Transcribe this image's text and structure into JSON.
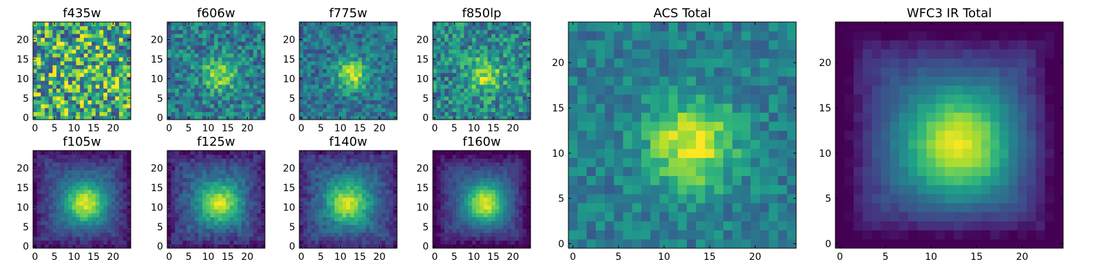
{
  "figure": {
    "colormap": "viridis",
    "frame_color": "#000000",
    "background": "#ffffff"
  },
  "chart_data": [
    {
      "type": "heatmap",
      "title": "f435w",
      "grid": false,
      "xlim": [
        -0.5,
        24.5
      ],
      "ylim": [
        -0.5,
        24.5
      ],
      "xticks": [
        0,
        5,
        10,
        15,
        20
      ],
      "yticks": [
        0,
        5,
        10,
        15,
        20
      ],
      "image_shape": [
        25,
        25
      ],
      "center": [
        13,
        11
      ],
      "source_strength": 0.05,
      "spread": 4.5,
      "noise": 0.42,
      "baseline": 0.62,
      "vignette": 0.0,
      "seed": 11
    },
    {
      "type": "heatmap",
      "title": "f606w",
      "grid": false,
      "xlim": [
        -0.5,
        24.5
      ],
      "ylim": [
        -0.5,
        24.5
      ],
      "xticks": [
        0,
        5,
        10,
        15,
        20
      ],
      "yticks": [
        0,
        5,
        10,
        15,
        20
      ],
      "image_shape": [
        25,
        25
      ],
      "center": [
        13,
        11
      ],
      "source_strength": 0.45,
      "spread": 2.8,
      "noise": 0.22,
      "baseline": 0.42,
      "vignette": 0.0,
      "seed": 23
    },
    {
      "type": "heatmap",
      "title": "f775w",
      "grid": false,
      "xlim": [
        -0.5,
        24.5
      ],
      "ylim": [
        -0.5,
        24.5
      ],
      "xticks": [
        0,
        5,
        10,
        15,
        20
      ],
      "yticks": [
        0,
        5,
        10,
        15,
        20
      ],
      "image_shape": [
        25,
        25
      ],
      "center": [
        13,
        11
      ],
      "source_strength": 0.55,
      "spread": 2.7,
      "noise": 0.18,
      "baseline": 0.38,
      "vignette": 0.0,
      "seed": 37
    },
    {
      "type": "heatmap",
      "title": "f850lp",
      "grid": false,
      "xlim": [
        -0.5,
        24.5
      ],
      "ylim": [
        -0.5,
        24.5
      ],
      "xticks": [
        0,
        5,
        10,
        15,
        20
      ],
      "yticks": [
        0,
        5,
        10,
        15,
        20
      ],
      "image_shape": [
        25,
        25
      ],
      "center": [
        13,
        11
      ],
      "source_strength": 0.42,
      "spread": 3.0,
      "noise": 0.24,
      "baseline": 0.46,
      "vignette": 0.0,
      "seed": 41
    },
    {
      "type": "heatmap",
      "title": "f105w",
      "grid": false,
      "xlim": [
        -0.5,
        24.5
      ],
      "ylim": [
        -0.5,
        24.5
      ],
      "xticks": [
        0,
        5,
        10,
        15,
        20
      ],
      "yticks": [
        0,
        5,
        10,
        15,
        20
      ],
      "image_shape": [
        25,
        25
      ],
      "center": [
        13,
        11
      ],
      "source_strength": 0.65,
      "spread": 3.6,
      "noise": 0.07,
      "baseline": 0.3,
      "vignette": 0.25,
      "seed": 53
    },
    {
      "type": "heatmap",
      "title": "f125w",
      "grid": false,
      "xlim": [
        -0.5,
        24.5
      ],
      "ylim": [
        -0.5,
        24.5
      ],
      "xticks": [
        0,
        5,
        10,
        15,
        20
      ],
      "yticks": [
        0,
        5,
        10,
        15,
        20
      ],
      "image_shape": [
        25,
        25
      ],
      "center": [
        13,
        11
      ],
      "source_strength": 0.6,
      "spread": 3.7,
      "noise": 0.09,
      "baseline": 0.32,
      "vignette": 0.25,
      "seed": 67
    },
    {
      "type": "heatmap",
      "title": "f140w",
      "grid": false,
      "xlim": [
        -0.5,
        24.5
      ],
      "ylim": [
        -0.5,
        24.5
      ],
      "xticks": [
        0,
        5,
        10,
        15,
        20
      ],
      "yticks": [
        0,
        5,
        10,
        15,
        20
      ],
      "image_shape": [
        25,
        25
      ],
      "center": [
        12,
        11
      ],
      "source_strength": 0.58,
      "spread": 3.8,
      "noise": 0.09,
      "baseline": 0.33,
      "vignette": 0.22,
      "seed": 71
    },
    {
      "type": "heatmap",
      "title": "f160w",
      "grid": false,
      "xlim": [
        -0.5,
        24.5
      ],
      "ylim": [
        -0.5,
        24.5
      ],
      "xticks": [
        0,
        5,
        10,
        15,
        20
      ],
      "yticks": [
        0,
        5,
        10,
        15,
        20
      ],
      "image_shape": [
        25,
        25
      ],
      "center": [
        13,
        11
      ],
      "source_strength": 0.68,
      "spread": 3.5,
      "noise": 0.06,
      "baseline": 0.28,
      "vignette": 0.3,
      "seed": 83
    },
    {
      "type": "heatmap",
      "title": "ACS Total",
      "grid": false,
      "xlim": [
        -0.5,
        24.5
      ],
      "ylim": [
        -0.5,
        24.5
      ],
      "xticks": [
        0,
        5,
        10,
        15,
        20
      ],
      "yticks": [
        0,
        5,
        10,
        15,
        20
      ],
      "image_shape": [
        25,
        25
      ],
      "center": [
        13,
        11
      ],
      "source_strength": 0.55,
      "spread": 3.4,
      "noise": 0.14,
      "baseline": 0.42,
      "vignette": 0.0,
      "seed": 97
    },
    {
      "type": "heatmap",
      "title": "WFC3 IR Total",
      "grid": false,
      "xlim": [
        -0.5,
        24.5
      ],
      "ylim": [
        -0.5,
        24.5
      ],
      "xticks": [
        0,
        5,
        10,
        15,
        20
      ],
      "yticks": [
        0,
        5,
        10,
        15,
        20
      ],
      "image_shape": [
        25,
        25
      ],
      "center": [
        13,
        11
      ],
      "source_strength": 0.68,
      "spread": 4.2,
      "noise": 0.035,
      "baseline": 0.28,
      "vignette": 0.35,
      "seed": 101
    }
  ]
}
